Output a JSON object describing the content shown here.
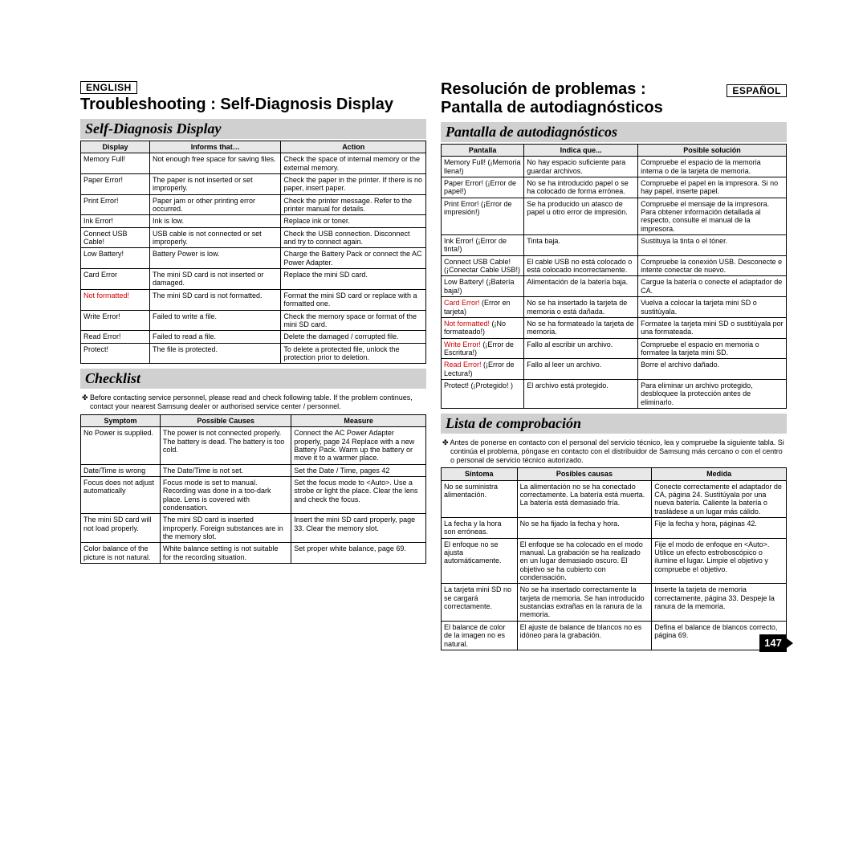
{
  "left": {
    "lang": "ENGLISH",
    "main_title": "Troubleshooting : Self-Diagnosis Display",
    "section1": "Self-Diagnosis Display",
    "t1_cols": [
      "Display",
      "Informs that…",
      "Action"
    ],
    "t1_widths": [
      "20%",
      "38%",
      "42%"
    ],
    "t1": [
      [
        "Memory Full!",
        "Not enough free space for saving files.",
        "Check the space of internal memory or the external memory."
      ],
      [
        "Paper Error!",
        "The paper is not inserted or set improperly.",
        "Check the paper in the printer. If there is no paper, insert paper."
      ],
      [
        "Print Error!",
        "Paper jam or other printing error occurred.",
        "Check the printer message. Refer to the printer manual for details."
      ],
      [
        "Ink Error!",
        "Ink is low.",
        "Replace ink or toner."
      ],
      [
        "Connect USB Cable!",
        "USB cable is not connected or set improperly.",
        "Check the USB connection. Disconnect and try to connect again."
      ],
      [
        "Low Battery!",
        "Battery Power is low.",
        "Charge the Battery Pack or connect the AC Power Adapter."
      ],
      [
        "Card Error",
        "The mini SD card is not inserted or damaged.",
        "Replace the mini SD card."
      ],
      [
        "Not formatted!",
        "The mini SD card is not formatted.",
        "Format the mini SD card or replace with a formatted one."
      ],
      [
        "Write Error!",
        "Failed to write a file.",
        "Check the memory space or format of the mini SD card."
      ],
      [
        "Read Error!",
        "Failed to read a file.",
        "Delete the damaged / corrupted file."
      ],
      [
        "Protect!",
        "The file is protected.",
        "To delete a protected file, unlock the protection prior to deletion."
      ]
    ],
    "t1_red": [
      7
    ],
    "section2": "Checklist",
    "note": "✤ Before contacting service personnel, please read and check following table. If the problem continues, contact your nearest Samsung dealer or authorised service center / personnel.",
    "t2_cols": [
      "Symptom",
      "Possible Causes",
      "Measure"
    ],
    "t2_widths": [
      "23%",
      "38%",
      "39%"
    ],
    "t2": [
      [
        "No Power is supplied.",
        "The power is not connected properly. The battery is dead. The battery is too cold.",
        "Connect the AC Power Adapter properly, page 24 Replace with a new Battery Pack. Warm up the battery or move it to a warmer place."
      ],
      [
        "Date/Time is wrong",
        "The Date/Time is not set.",
        "Set the Date / Time, pages 42"
      ],
      [
        "Focus does not adjust automatically",
        "Focus mode is set to manual. Recording was done in a too-dark place. Lens is covered with condensation.",
        "Set the focus mode to <Auto>. Use a strobe or light the place. Clear the lens and check the focus."
      ],
      [
        "The mini SD card will not load properly.",
        "The mini SD card is inserted improperly. Foreign substances are in the memory slot.",
        "Insert the mini SD card properly, page 33. Clear the memory slot."
      ],
      [
        "Color balance of the picture is not natural.",
        "White balance setting is not suitable for the recording situation.",
        "Set proper white balance, page 69."
      ]
    ]
  },
  "right": {
    "lang": "ESPAÑOL",
    "main_title_a": "Resolución de problemas :",
    "main_title_b": "Pantalla de autodiagnósticos",
    "section1": "Pantalla de autodiagnósticos",
    "t1_cols": [
      "Pantalla",
      "Indica que...",
      "Posible solución"
    ],
    "t1_widths": [
      "24%",
      "33%",
      "43%"
    ],
    "t1": [
      [
        "Memory Full! (¡Memoria llena!)",
        "No hay espacio suficiente para guardar archivos.",
        "Compruebe el espacio de la memoria interna o de la tarjeta de memoria."
      ],
      [
        "Paper Error! (¡Error de papel!)",
        "No se ha introducido papel o se ha colocado de forma errónea.",
        "Compruebe el papel en la impresora. Si no hay papel, inserte papel."
      ],
      [
        "Print Error! (¡Error de impresión!)",
        "Se ha producido un atasco de papel u otro error de impresión.",
        "Compruebe el mensaje de la impresora. Para obtener información detallada al respecto, consulte el manual de la impresora."
      ],
      [
        "Ink Error! (¡Error de tinta!)",
        "Tinta baja.",
        "Sustituya la tinta o el tóner."
      ],
      [
        "Connect USB Cable! (¡Conectar Cable USB!)",
        "El cable USB no está colocado o está colocado incorrectamente.",
        "Compruebe la conexión USB. Desconecte e intente conectar de nuevo."
      ],
      [
        "Low Battery! (¡Batería baja!)",
        "Alimentación de la batería baja.",
        "Cargue la batería o conecte el adaptador de CA."
      ],
      [
        "Card Error! (Error en tarjeta)",
        "No se ha insertado la tarjeta de memoria o está dañada.",
        "Vuelva a colocar la tarjeta mini SD o sustitúyala."
      ],
      [
        "Not formatted! (¡No formateado!)",
        "No se ha formateado la tarjeta de memoria.",
        "Formatee la tarjeta mini SD o sustitúyala por una formateada."
      ],
      [
        "Write Error! (¡Error de Escritura!)",
        "Fallo al escribir un archivo.",
        "Compruebe el espacio en memoria o formatee la tarjeta mini SD."
      ],
      [
        "Read Error! (¡Error de Lectura!)",
        "Fallo al leer un archivo.",
        "Borre el archivo dañado."
      ],
      [
        "Protect! (¡Protegido! )",
        "El archivo está protegido.",
        "Para eliminar un archivo protegido, desbloquee la protección antes de eliminarlo."
      ]
    ],
    "t1_red_first": [
      6,
      7,
      8,
      9
    ],
    "section2": "Lista de comprobación",
    "note": "✤ Antes de ponerse en contacto con el personal del servicio técnico, lea y compruebe la siguiente tabla. Si continúa el problema, póngase en contacto con el distribuidor de Samsung más cercano o con el centro o personal de servicio técnico autorizado.",
    "t2_cols": [
      "Síntoma",
      "Posibles causas",
      "Medida"
    ],
    "t2_widths": [
      "22%",
      "39%",
      "39%"
    ],
    "t2": [
      [
        "No se suministra alimentación.",
        "La alimentación no se ha conectado correctamente. La batería está muerta. La batería está demasiado fría.",
        "Conecte correctamente el adaptador de CA, página 24. Sustitúyala por una nueva batería. Caliente la batería o trasládese a un lugar más cálido."
      ],
      [
        "La fecha y la hora son erróneas.",
        "No se ha fijado la fecha y hora.",
        "Fije la fecha y hora, páginas 42."
      ],
      [
        "El enfoque no se ajusta automáticamente.",
        "El enfoque se ha colocado en el modo manual. La grabación se ha realizado en un lugar demasiado oscuro. El objetivo se ha cubierto con condensación.",
        "Fije el modo de enfoque en <Auto>. Utilice un efecto estroboscópico o ilumine el lugar. Limpie el objetivo y compruebe el objetivo."
      ],
      [
        "La tarjeta mini SD no se cargará correctamente.",
        "No se ha insertado correctamente la tarjeta de memoria. Se han introducido sustancias extrañas en la ranura de la memoria.",
        "Inserte la tarjeta de memoria correctamente, página 33. Despeje la ranura de la memoria."
      ],
      [
        "El balance de color de la imagen no es natural.",
        "El ajuste de balance de blancos no es idóneo para la grabación.",
        "Defina el balance de blancos correcto, página 69."
      ]
    ]
  },
  "page_number": "147"
}
